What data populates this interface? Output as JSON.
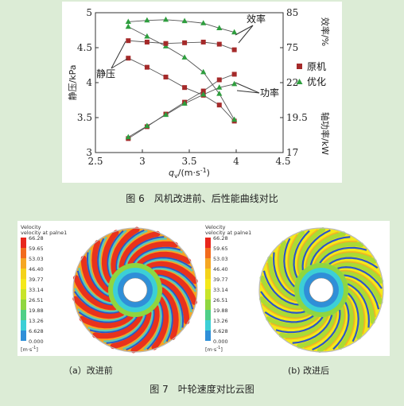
{
  "figure6": {
    "caption": "图 6　风机改进前、后性能曲线对比",
    "chart_data": {
      "type": "line",
      "xlabel": "q",
      "xlabel_sub": "v",
      "xlabel_unit": "/(m·s",
      "xlabel_sup": "-1",
      "xlabel_close": ")",
      "ylabel_left": "静压/kPa",
      "ylabel_right_top": "效率/%",
      "ylabel_right_bottom": "轴功率/kW",
      "xlim": [
        2.5,
        4.5
      ],
      "ylim_left": [
        3,
        5
      ],
      "xticks": [
        "2.5",
        "3",
        "3.5",
        "4",
        "4.5"
      ],
      "yticks_left": [
        "3",
        "3.5",
        "4",
        "4.5",
        "5"
      ],
      "yticks_right": [
        "17",
        "19.5",
        "22",
        "75",
        "85"
      ],
      "annotations": {
        "pressure": "静压",
        "efficiency": "效率",
        "power": "功率"
      },
      "legend": [
        {
          "name": "原机",
          "marker": "square",
          "color": "#a52a2a"
        },
        {
          "name": "优化",
          "marker": "triangle",
          "color": "#2e9e3e"
        }
      ],
      "x": [
        2.85,
        3.05,
        3.25,
        3.45,
        3.65,
        3.82,
        3.98
      ],
      "series": [
        {
          "name": "原机-静压",
          "marker": "square",
          "y": [
            4.35,
            4.22,
            4.08,
            3.93,
            3.82,
            3.68,
            3.45
          ]
        },
        {
          "name": "优化-静压",
          "marker": "triangle",
          "y": [
            4.8,
            4.66,
            4.52,
            4.36,
            4.15,
            3.84,
            3.47
          ]
        },
        {
          "name": "原机-效率",
          "marker": "square",
          "y": [
            4.6,
            4.58,
            4.56,
            4.57,
            4.58,
            4.55,
            4.47
          ]
        },
        {
          "name": "优化-效率",
          "marker": "triangle",
          "y": [
            4.87,
            4.89,
            4.9,
            4.88,
            4.85,
            4.78,
            4.72
          ]
        },
        {
          "name": "原机-功率",
          "marker": "square",
          "y": [
            3.2,
            3.37,
            3.55,
            3.72,
            3.88,
            4.04,
            4.12
          ]
        },
        {
          "name": "优化-功率",
          "marker": "triangle",
          "y": [
            3.22,
            3.38,
            3.54,
            3.7,
            3.83,
            3.93,
            3.98
          ]
        }
      ]
    }
  },
  "figure7": {
    "caption": "图 7　叶轮速度对比云图",
    "panels": [
      {
        "label": "（a）改进前",
        "legend_title1": "Velocity",
        "legend_title2": "velocity at palne1"
      },
      {
        "label": "(b) 改进后",
        "legend_title1": "Velocity",
        "legend_title2": "velocity at palne1"
      }
    ],
    "legend_values": [
      "66.28",
      "59.65",
      "53.03",
      "46.40",
      "39.77",
      "33.14",
      "26.51",
      "19.88",
      "13.26",
      "6.628",
      "0.000"
    ],
    "legend_unit": "[m·s",
    "legend_unit_sup": "-1",
    "legend_unit_close": "]",
    "colors": {
      "red": "#e8261c",
      "orange": "#f5a623",
      "yellow": "#f4e81a",
      "green": "#9ed83a",
      "cyan": "#3ccfd6",
      "blue": "#2a57c8"
    }
  }
}
